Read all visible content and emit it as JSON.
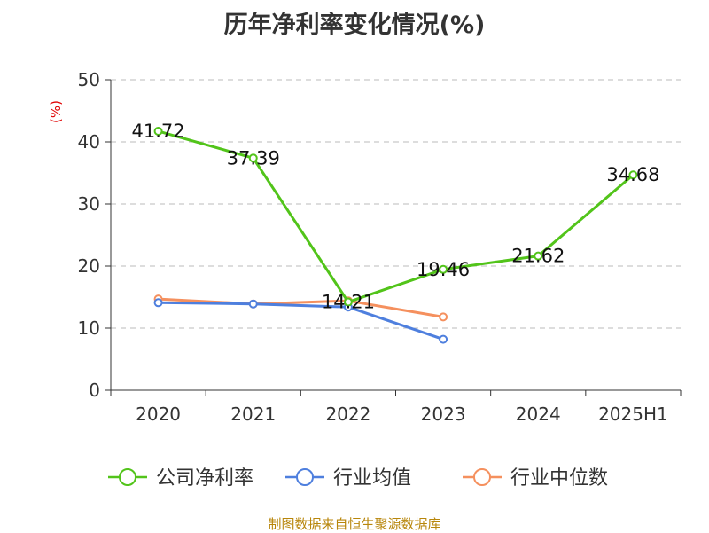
{
  "title": "历年净利率变化情况(%)",
  "source": "制图数据来自恒生聚源数据库",
  "chart_data": {
    "type": "line",
    "title": "历年净利率变化情况(%)",
    "ylabel": "(%)",
    "xlabel": "",
    "categories": [
      "2020",
      "2021",
      "2022",
      "2023",
      "2024",
      "2025H1"
    ],
    "yticks": [
      "0",
      "10",
      "20",
      "30",
      "40",
      "50"
    ],
    "ylim": [
      0,
      50
    ],
    "grid": true,
    "legend_position": "bottom",
    "series": [
      {
        "name": "公司净利率",
        "color": "#52c41a",
        "values": [
          41.72,
          37.39,
          14.21,
          19.46,
          21.62,
          34.68
        ],
        "labels": [
          "41.72",
          "37.39",
          "14.21",
          "19.46",
          "21.62",
          "34.68"
        ]
      },
      {
        "name": "行业均值",
        "color": "#4e7fde",
        "values": [
          14.1,
          13.9,
          13.4,
          8.2,
          null,
          null
        ]
      },
      {
        "name": "行业中位数",
        "color": "#f5905e",
        "values": [
          14.7,
          13.9,
          14.4,
          11.8,
          null,
          null
        ]
      }
    ]
  }
}
